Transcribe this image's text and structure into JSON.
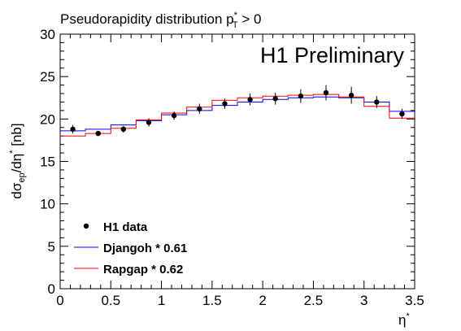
{
  "chart_data": {
    "type": "line",
    "title": "Pseudorapidity distribution p",
    "title_sup": "*",
    "title_sub": "T",
    "title_tail": " > 0",
    "watermark": "H1 Preliminary",
    "ylabel_main": "dσ",
    "ylabel_sub": "ep",
    "ylabel_tail": "/dη",
    "ylabel_sup": "*",
    "ylabel_unit": " [nb]",
    "xlabel": "η",
    "xlabel_sup": "*",
    "xlim": [
      0,
      3.5
    ],
    "ylim": [
      0,
      30
    ],
    "x_ticks": [
      "0",
      "0.5",
      "1",
      "1.5",
      "2",
      "2.5",
      "3",
      "3.5"
    ],
    "y_ticks": [
      "0",
      "5",
      "10",
      "15",
      "20",
      "25",
      "30"
    ],
    "bin_edges": [
      0,
      0.25,
      0.5,
      0.75,
      1.0,
      1.25,
      1.5,
      1.75,
      2.0,
      2.25,
      2.5,
      2.75,
      3.0,
      3.25,
      3.5
    ],
    "data_points": {
      "name": "H1 data",
      "x": [
        0.125,
        0.375,
        0.625,
        0.875,
        1.125,
        1.375,
        1.625,
        1.875,
        2.125,
        2.375,
        2.625,
        2.875,
        3.125,
        3.375
      ],
      "y": [
        18.8,
        18.3,
        18.8,
        19.6,
        20.4,
        21.2,
        21.8,
        22.3,
        22.4,
        22.7,
        23.1,
        22.8,
        22.0,
        20.6
      ],
      "err": [
        0.5,
        0.3,
        0.4,
        0.5,
        0.5,
        0.6,
        0.6,
        0.7,
        0.7,
        0.8,
        0.9,
        1.0,
        0.7,
        0.6
      ],
      "color": "#000000"
    },
    "series": [
      {
        "name": "Djangoh * 0.61",
        "values": [
          18.6,
          18.8,
          19.3,
          19.8,
          20.5,
          21.0,
          21.6,
          22.0,
          22.3,
          22.5,
          22.6,
          22.5,
          22.0,
          20.9
        ],
        "color": "#0000ff"
      },
      {
        "name": "Rapgap * 0.62",
        "values": [
          18.0,
          18.3,
          18.9,
          19.9,
          20.7,
          21.4,
          22.2,
          22.5,
          22.7,
          22.8,
          22.9,
          22.6,
          21.5,
          20.1
        ],
        "color": "#ff0000"
      }
    ],
    "legend_placement": "bottom-left",
    "grid": false
  }
}
